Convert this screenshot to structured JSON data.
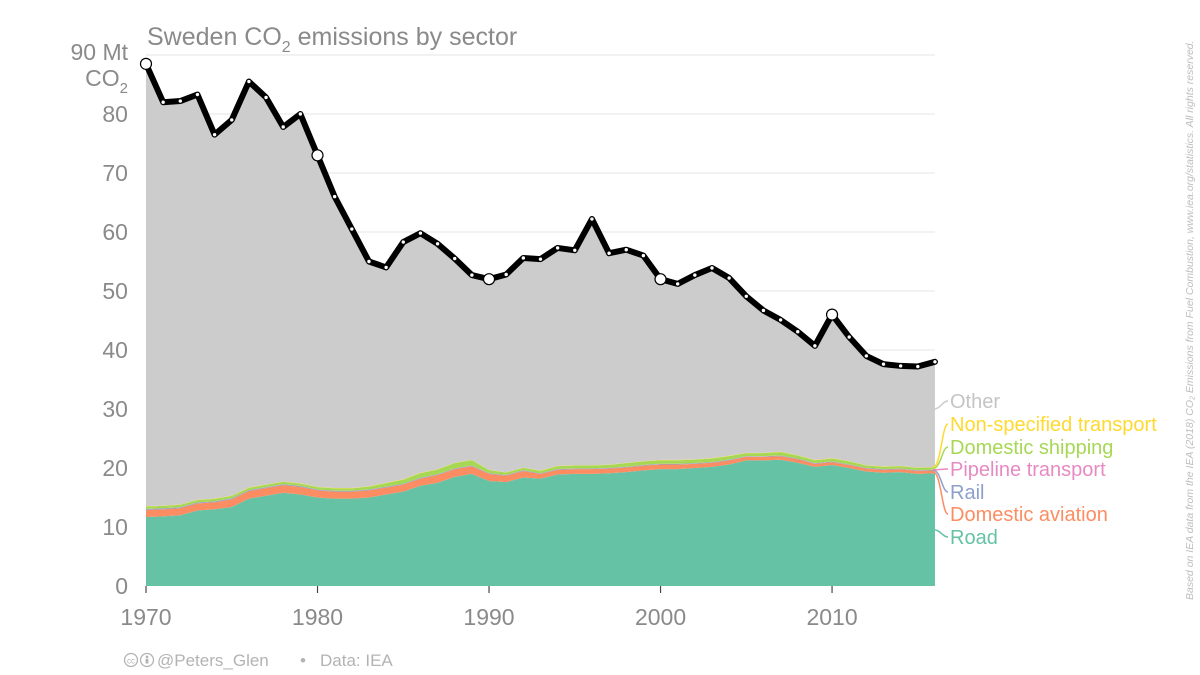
{
  "chart_data": {
    "type": "area",
    "title": "Sweden CO2 emissions by sector",
    "title_main": "Sweden CO",
    "title_sub": "2",
    "title_tail": " emissions by sector",
    "unit_line1": "90 Mt",
    "unit_line2_main": "CO",
    "unit_line2_sub": "2",
    "ylim": [
      0,
      90
    ],
    "xlim": [
      1970,
      2016
    ],
    "yticks": [
      0,
      10,
      20,
      30,
      40,
      50,
      60,
      70,
      80
    ],
    "xticks": [
      1970,
      1980,
      1990,
      2000,
      2010
    ],
    "grid": true,
    "stacked": true,
    "years": [
      1970,
      1971,
      1972,
      1973,
      1974,
      1975,
      1976,
      1977,
      1978,
      1979,
      1980,
      1981,
      1982,
      1983,
      1984,
      1985,
      1986,
      1987,
      1988,
      1989,
      1990,
      1991,
      1992,
      1993,
      1994,
      1995,
      1996,
      1997,
      1998,
      1999,
      2000,
      2001,
      2002,
      2003,
      2004,
      2005,
      2006,
      2007,
      2008,
      2009,
      2010,
      2011,
      2012,
      2013,
      2014,
      2015,
      2016
    ],
    "total": [
      88.5,
      82.0,
      82.2,
      83.3,
      76.5,
      79.0,
      85.5,
      82.8,
      77.8,
      80.0,
      73.0,
      66.0,
      60.5,
      55.0,
      54.0,
      58.3,
      59.8,
      58.0,
      55.5,
      52.7,
      52.0,
      52.8,
      55.6,
      55.4,
      57.3,
      56.9,
      62.2,
      56.4,
      57.0,
      56.0,
      52.0,
      51.2,
      52.7,
      53.9,
      52.2,
      49.1,
      46.7,
      45.1,
      43.1,
      40.7,
      46.0,
      42.2,
      39.0,
      37.6,
      37.3,
      37.2,
      38.0
    ],
    "series": [
      {
        "name": "Road",
        "color": "#66c2a5",
        "values": [
          11.7,
          11.8,
          12.0,
          12.8,
          13.0,
          13.4,
          14.8,
          15.3,
          15.8,
          15.5,
          15.0,
          14.8,
          14.8,
          15.0,
          15.5,
          16.0,
          17.0,
          17.5,
          18.5,
          19.0,
          17.8,
          17.6,
          18.4,
          18.2,
          18.9,
          19.0,
          19.0,
          19.1,
          19.3,
          19.6,
          19.8,
          19.8,
          20.0,
          20.2,
          20.6,
          21.3,
          21.3,
          21.4,
          20.9,
          20.2,
          20.5,
          20.0,
          19.4,
          19.2,
          19.3,
          19.0,
          19.1
        ]
      },
      {
        "name": "Domestic aviation",
        "color": "#fc8d62",
        "values": [
          1.2,
          1.2,
          1.2,
          1.2,
          1.2,
          1.3,
          1.3,
          1.3,
          1.3,
          1.3,
          1.2,
          1.2,
          1.2,
          1.2,
          1.2,
          1.2,
          1.2,
          1.3,
          1.3,
          1.3,
          1.2,
          1.1,
          1.1,
          0.8,
          0.8,
          0.8,
          0.8,
          0.8,
          0.8,
          0.8,
          0.8,
          0.8,
          0.7,
          0.7,
          0.7,
          0.6,
          0.6,
          0.6,
          0.6,
          0.5,
          0.5,
          0.5,
          0.5,
          0.5,
          0.5,
          0.5,
          0.5
        ]
      },
      {
        "name": "Rail",
        "color": "#8da0cb",
        "values": [
          0.15,
          0.15,
          0.15,
          0.15,
          0.15,
          0.15,
          0.14,
          0.14,
          0.14,
          0.14,
          0.13,
          0.13,
          0.13,
          0.13,
          0.12,
          0.12,
          0.12,
          0.12,
          0.12,
          0.11,
          0.11,
          0.11,
          0.1,
          0.1,
          0.1,
          0.1,
          0.1,
          0.1,
          0.1,
          0.1,
          0.1,
          0.1,
          0.1,
          0.1,
          0.1,
          0.1,
          0.1,
          0.1,
          0.1,
          0.1,
          0.1,
          0.1,
          0.1,
          0.1,
          0.1,
          0.1,
          0.1
        ]
      },
      {
        "name": "Pipeline transport",
        "color": "#e78ac3",
        "values": [
          0.02,
          0.02,
          0.02,
          0.02,
          0.02,
          0.02,
          0.02,
          0.02,
          0.02,
          0.02,
          0.02,
          0.02,
          0.02,
          0.02,
          0.02,
          0.02,
          0.02,
          0.02,
          0.02,
          0.02,
          0.02,
          0.02,
          0.02,
          0.02,
          0.02,
          0.02,
          0.02,
          0.02,
          0.02,
          0.02,
          0.02,
          0.02,
          0.02,
          0.02,
          0.02,
          0.02,
          0.02,
          0.02,
          0.02,
          0.02,
          0.02,
          0.02,
          0.02,
          0.02,
          0.02,
          0.02,
          0.02
        ]
      },
      {
        "name": "Domestic shipping",
        "color": "#a6d854",
        "values": [
          0.4,
          0.4,
          0.4,
          0.4,
          0.4,
          0.4,
          0.4,
          0.4,
          0.4,
          0.4,
          0.4,
          0.4,
          0.4,
          0.5,
          0.6,
          0.7,
          0.8,
          0.8,
          0.9,
          0.9,
          0.5,
          0.4,
          0.4,
          0.4,
          0.5,
          0.5,
          0.5,
          0.5,
          0.6,
          0.6,
          0.6,
          0.6,
          0.6,
          0.6,
          0.6,
          0.5,
          0.5,
          0.6,
          0.5,
          0.5,
          0.5,
          0.5,
          0.4,
          0.4,
          0.4,
          0.4,
          0.4
        ]
      },
      {
        "name": "Non-specified transport",
        "color": "#ffd92f",
        "values": [
          0.05,
          0.05,
          0.05,
          0.05,
          0.05,
          0.05,
          0.05,
          0.05,
          0.05,
          0.05,
          0.05,
          0.05,
          0.05,
          0.05,
          0.05,
          0.05,
          0.05,
          0.05,
          0.05,
          0.05,
          0.05,
          0.05,
          0.05,
          0.05,
          0.05,
          0.05,
          0.05,
          0.05,
          0.05,
          0.05,
          0.05,
          0.05,
          0.05,
          0.05,
          0.05,
          0.05,
          0.05,
          0.05,
          0.05,
          0.05,
          0.05,
          0.05,
          0.05,
          0.05,
          0.05,
          0.05,
          0.05
        ]
      },
      {
        "name": "Other",
        "color": "#cccccc",
        "values": "remainder of total"
      }
    ],
    "highlight_years": [
      1970,
      1980,
      1990,
      2000,
      2010
    ],
    "legend_placement": "right"
  },
  "credit": {
    "handle": "@Peters_Glen",
    "separator": "•",
    "data_label": "Data: IEA"
  },
  "source_text": "Based on IEA data from the IEA (2018) CO₂ Emissions from Fuel Combustion, www.iea.org/statistics. All rights reserved."
}
